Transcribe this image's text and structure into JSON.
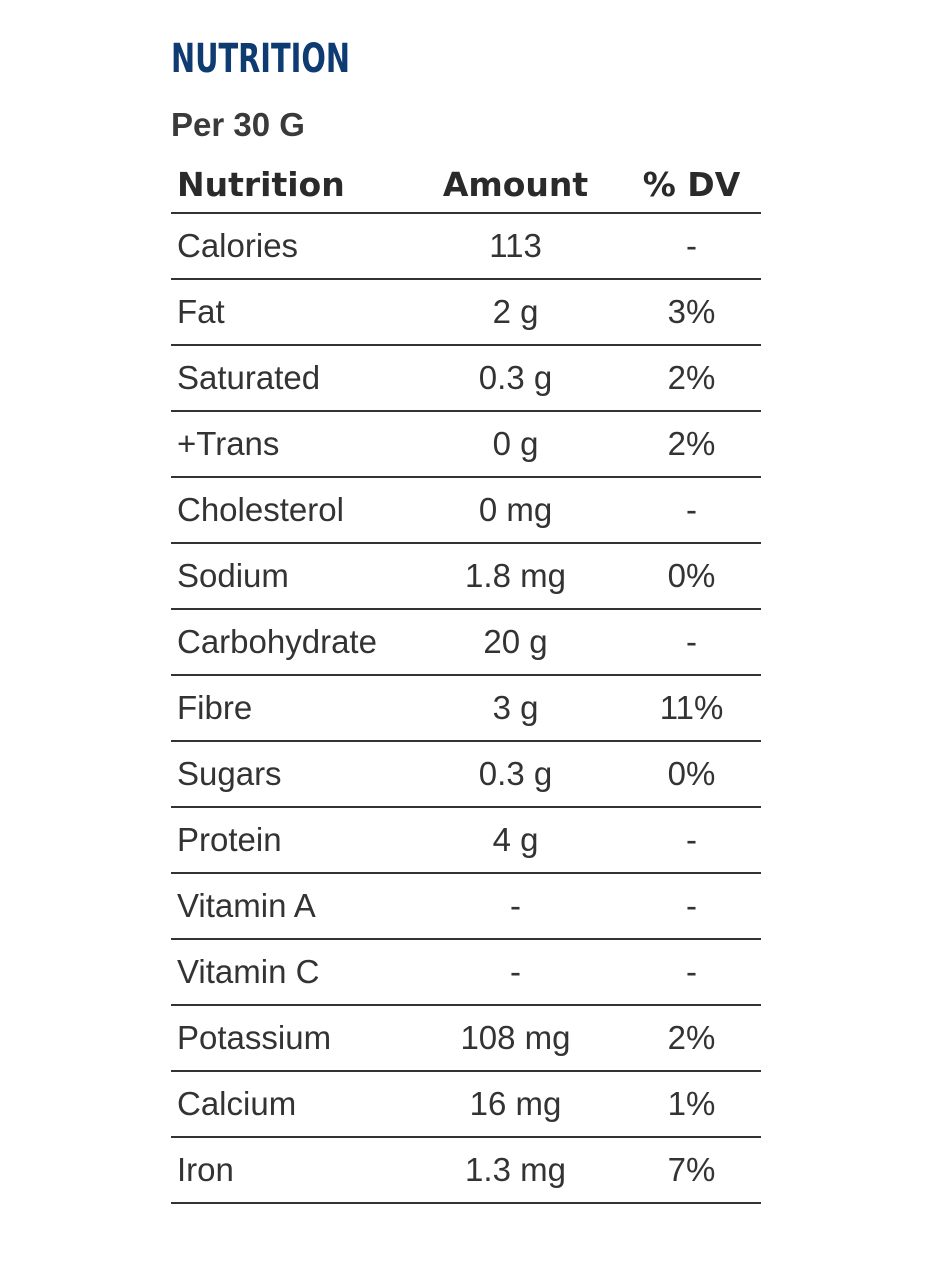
{
  "title": "NUTRITION",
  "serving": "Per 30 G",
  "headers": {
    "nutrient": "Nutrition",
    "amount": "Amount",
    "dv": "% DV"
  },
  "colors": {
    "title": "#0d3b72",
    "text": "#333333"
  },
  "rows": [
    {
      "name": "Calories",
      "amount": "113",
      "dv": "-"
    },
    {
      "name": "Fat",
      "amount": "2 g",
      "dv": "3%"
    },
    {
      "name": "Saturated",
      "amount": "0.3 g",
      "dv": "2%"
    },
    {
      "name": "+Trans",
      "amount": "0 g",
      "dv": "2%"
    },
    {
      "name": "Cholesterol",
      "amount": "0 mg",
      "dv": "-"
    },
    {
      "name": "Sodium",
      "amount": "1.8 mg",
      "dv": "0%"
    },
    {
      "name": "Carbohydrate",
      "amount": "20 g",
      "dv": "-"
    },
    {
      "name": "Fibre",
      "amount": "3 g",
      "dv": "11%"
    },
    {
      "name": "Sugars",
      "amount": "0.3 g",
      "dv": "0%"
    },
    {
      "name": "Protein",
      "amount": "4 g",
      "dv": "-"
    },
    {
      "name": "Vitamin A",
      "amount": "-",
      "dv": "-"
    },
    {
      "name": "Vitamin C",
      "amount": "-",
      "dv": "-"
    },
    {
      "name": "Potassium",
      "amount": "108 mg",
      "dv": "2%"
    },
    {
      "name": "Calcium",
      "amount": "16 mg",
      "dv": "1%"
    },
    {
      "name": "Iron",
      "amount": "1.3 mg",
      "dv": "7%"
    }
  ]
}
